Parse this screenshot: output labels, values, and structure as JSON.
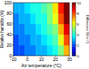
{
  "chart_data": {
    "type": "heatmap",
    "x_label": "Air temperature (°C)",
    "y_label": "Relative humidity (%)",
    "colorbar_label": "Difference (W m⁻²)",
    "x": [
      -8,
      -4,
      0,
      4,
      8,
      12,
      16,
      20,
      24,
      28
    ],
    "y": [
      10,
      30,
      50,
      70,
      90
    ],
    "cells": [
      [
        2,
        2,
        2.5,
        2.5,
        3,
        3,
        3.5,
        4,
        5,
        7
      ],
      [
        2,
        2.5,
        2.5,
        3,
        3,
        3.5,
        4,
        4.5,
        6,
        8
      ],
      [
        2.5,
        2.5,
        3,
        3,
        3.5,
        4,
        4.5,
        5,
        7,
        9
      ],
      [
        2.5,
        3,
        3,
        3.5,
        4,
        4,
        5,
        6,
        8,
        10
      ],
      [
        3,
        3,
        3.5,
        4,
        4,
        4.5,
        5,
        6.5,
        8.5,
        10
      ]
    ],
    "xlim": [
      -10,
      30
    ],
    "xticks": [
      -10,
      0,
      10,
      20,
      30
    ],
    "ylim": [
      0,
      100
    ],
    "yticks": [
      0,
      20,
      40,
      60,
      80,
      100
    ],
    "colorbar_range": [
      0,
      10
    ],
    "colorbar_ticks": [
      0,
      2,
      4,
      6,
      8,
      10
    ]
  }
}
